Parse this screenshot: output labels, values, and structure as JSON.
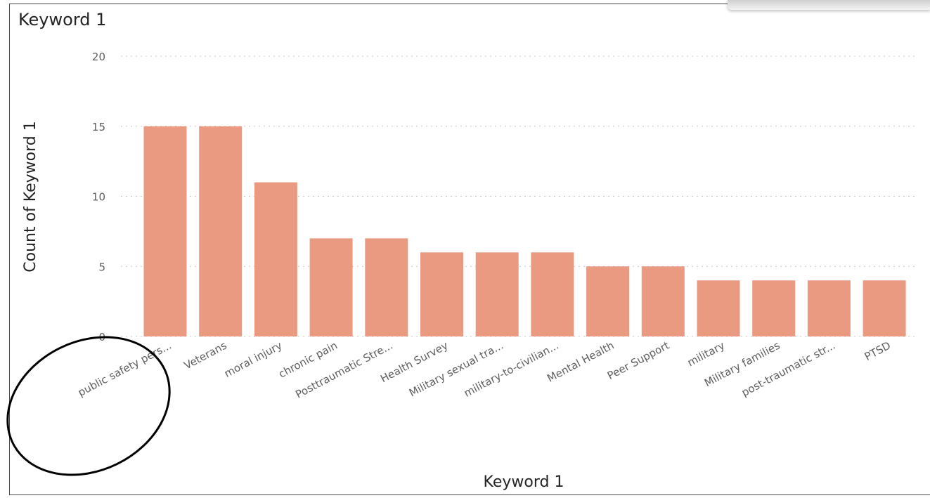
{
  "visual": {
    "title": "Keyword 1"
  },
  "colors": {
    "bar": "#E99A80",
    "frame": "#4a4a4a",
    "annotation": "#000000"
  },
  "annotation": {
    "shape": "ellipse",
    "target": "public safety pers..."
  },
  "chart_data": {
    "type": "bar",
    "title": "Keyword 1",
    "xlabel": "Keyword 1",
    "ylabel": "Count of Keyword 1",
    "ylim": [
      0,
      20
    ],
    "yticks": [
      0,
      5,
      10,
      15,
      20
    ],
    "grid": true,
    "legend": "none",
    "categories": [
      "public safety pers...",
      "Veterans",
      "moral injury",
      "chronic pain",
      "Posttraumatic Stre...",
      "Health Survey",
      "Military sexual tra...",
      "military-to-civilian...",
      "Mental Health",
      "Peer Support",
      "military",
      "Military families",
      "post-traumatic str...",
      "PTSD"
    ],
    "values": [
      15,
      15,
      11,
      7,
      7,
      6,
      6,
      6,
      5,
      5,
      4,
      4,
      4,
      4
    ]
  }
}
